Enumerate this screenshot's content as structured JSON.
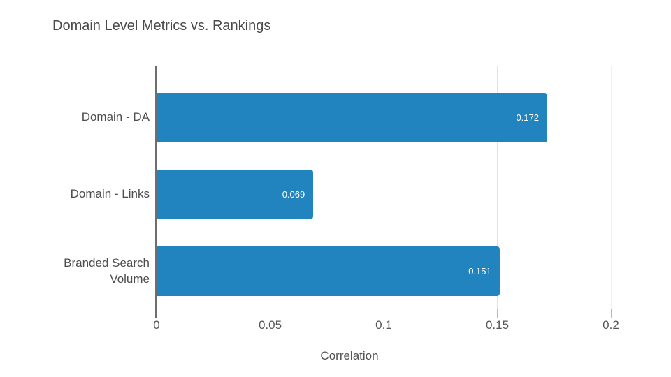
{
  "chart_data": {
    "type": "bar",
    "orientation": "horizontal",
    "title": "Domain Level Metrics vs. Rankings",
    "categories": [
      "Domain - DA",
      "Domain - Links",
      "Branded Search Volume"
    ],
    "values": [
      0.172,
      0.069,
      0.151
    ],
    "value_labels": [
      "0.172",
      "0.069",
      "0.151"
    ],
    "xlabel": "Correlation",
    "xlim": [
      0,
      0.2
    ],
    "xticks": [
      0,
      0.05,
      0.1,
      0.15,
      0.2
    ],
    "xtick_labels": [
      "0",
      "0.05",
      "0.1",
      "0.15",
      "0.2"
    ],
    "grid": true,
    "legend": false,
    "colors": {
      "bar": "#2284bf",
      "value_label": "#ffffff",
      "axis_line": "#6e6e6e",
      "gridline": "#e2e2e2",
      "text": "#4d4d4d"
    }
  }
}
